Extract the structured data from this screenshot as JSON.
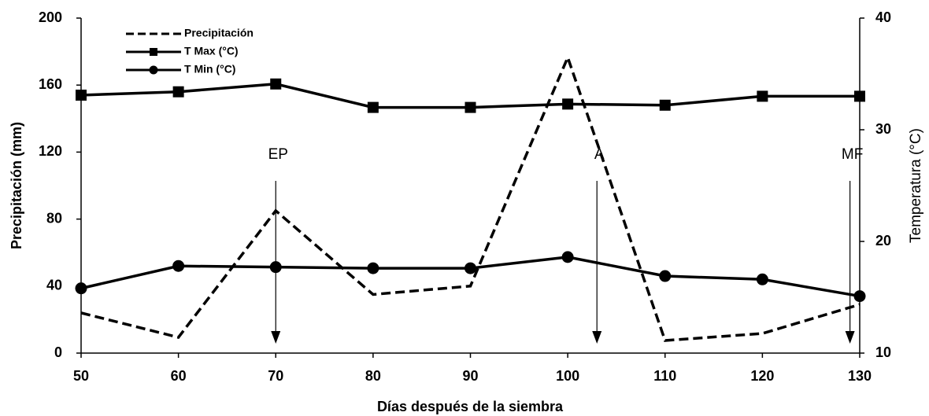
{
  "chart_data": {
    "type": "line",
    "x_label": "Días después de la siembra",
    "y_label": "Precipitación (mm)",
    "y2_label": "Temperatura (°C)",
    "x": [
      50,
      60,
      70,
      80,
      90,
      100,
      110,
      120,
      130
    ],
    "xlim": [
      50,
      130
    ],
    "xticks": [
      50,
      60,
      70,
      80,
      90,
      100,
      110,
      120,
      130
    ],
    "ylim": [
      0,
      200
    ],
    "yticks": [
      0,
      40,
      80,
      120,
      160,
      200
    ],
    "y2lim": [
      10,
      40
    ],
    "y2ticks": [
      10,
      20,
      30,
      40
    ],
    "legend": "upper left",
    "series": [
      {
        "name": "Precipitación",
        "color": "#000000",
        "style": "dashed",
        "values": [
          24,
          9.4,
          85,
          35,
          40,
          176.5,
          7.5,
          11.7,
          29
        ]
      },
      {
        "name": "T Max (°C)",
        "color": "#000000",
        "marker": "square",
        "axis": "y2",
        "values": [
          33.1,
          33.4,
          34.1,
          32.0,
          32.0,
          32.3,
          32.2,
          33.0,
          33.0
        ]
      },
      {
        "name": "T Min (°C)",
        "color": "#000000",
        "marker": "circle",
        "axis": "y2",
        "values": [
          15.8,
          17.8,
          17.7,
          17.6,
          17.6,
          18.6,
          16.9,
          16.6,
          15.1
        ]
      }
    ],
    "annotations": [
      {
        "text": "EP",
        "x": 70
      },
      {
        "text": "A",
        "x": 103
      },
      {
        "text": "MF",
        "x": 129
      }
    ]
  }
}
